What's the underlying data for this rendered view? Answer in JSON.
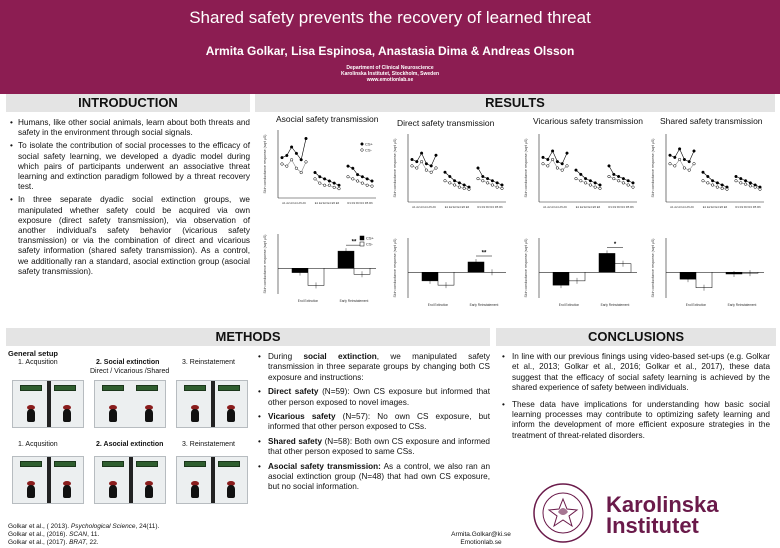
{
  "header": {
    "title": "Shared safety prevents the recovery of learned threat",
    "authors": "Armita Golkar, Lisa Espinosa, Anastasia Dima & Andreas Olsson",
    "affiliation": [
      "Department of Clinical Neuroscience",
      "Karolinska Institutet, Stockholm, Sweden",
      "www.emotionlab.se"
    ]
  },
  "introduction": {
    "heading": "INTRODUCTION",
    "bullets": [
      "Humans, like other social animals, learn about both threats and safety in the environment through social signals.",
      "To isolate the contribution of social processes to the efficacy of social safety learning, we developed a dyadic model during which pairs of participants underwent an associative threat learning and extinction paradigm followed by a threat recovery test.",
      "In three separate dyadic social extinction groups, we manipulated whether safety could be acquired via own exposure (direct safety transmission), via observation of another individual's safety behavior (vicarious safety transmission) or via the combination of direct and vicarious safety information (shared safety transmission). As a control, we additionally ran a standard, asocial extinction group (asocial safety transmission)."
    ]
  },
  "results": {
    "heading": "RESULTS",
    "panels": [
      {
        "title": "Asocial safety transmission"
      },
      {
        "title": "Direct safety transmission"
      },
      {
        "title": "Vicarious safety transmission"
      },
      {
        "title": "Shared safety transmission"
      }
    ],
    "legend": [
      "CS+",
      "CS-"
    ],
    "line_ylabel": "Skin conductance response (sqrt μS)",
    "bar_ylabel": "Skin conductance response (sqrt μS)",
    "line_xticks": [
      "A1 A2 A3 A4 A5 A6",
      "E1 E2 E3 E4 E5 E6",
      "R1 R2 R3 R4 R5 R6"
    ],
    "bar_categories": [
      "End Extinction",
      "Early Reinstatement"
    ],
    "sig_markers": [
      "**",
      "**",
      "*",
      ""
    ]
  },
  "chart_data": [
    {
      "type": "line",
      "title": "Asocial safety transmission",
      "series": [
        {
          "name": "CS+",
          "values": [
            0.95,
            1.0,
            1.2,
            1.05,
            0.9,
            1.4,
            0.6,
            0.5,
            0.45,
            0.4,
            0.35,
            0.3,
            0.75,
            0.7,
            0.55,
            0.5,
            0.45,
            0.4
          ]
        },
        {
          "name": "CS-",
          "values": [
            0.8,
            0.75,
            0.9,
            0.7,
            0.6,
            0.85,
            0.45,
            0.35,
            0.3,
            0.3,
            0.25,
            0.22,
            0.5,
            0.45,
            0.4,
            0.35,
            0.3,
            0.28
          ]
        }
      ],
      "ylim": [
        0,
        1.6
      ]
    },
    {
      "type": "bar",
      "title": "Asocial safety transmission",
      "categories": [
        "End Extinction",
        "Early Reinstatement"
      ],
      "series": [
        {
          "name": "CS+",
          "values": [
            -0.05,
            0.2
          ]
        },
        {
          "name": "CS-",
          "values": [
            -0.2,
            -0.07
          ]
        }
      ],
      "ylim": [
        -0.3,
        0.4
      ]
    },
    {
      "type": "line",
      "title": "Direct safety transmission",
      "series": [
        {
          "name": "CS+",
          "values": [
            1.0,
            0.95,
            1.15,
            0.9,
            0.85,
            1.1,
            0.7,
            0.6,
            0.5,
            0.45,
            0.4,
            0.35,
            0.8,
            0.6,
            0.55,
            0.5,
            0.45,
            0.4
          ]
        },
        {
          "name": "CS-",
          "values": [
            0.85,
            0.8,
            0.95,
            0.75,
            0.7,
            0.8,
            0.5,
            0.45,
            0.4,
            0.35,
            0.32,
            0.3,
            0.55,
            0.5,
            0.45,
            0.4,
            0.35,
            0.32
          ]
        }
      ],
      "ylim": [
        0,
        1.6
      ]
    },
    {
      "type": "bar",
      "title": "Direct safety transmission",
      "categories": [
        "End Extinction",
        "Early Reinstatement"
      ],
      "series": [
        {
          "name": "CS+",
          "values": [
            -0.1,
            0.12
          ]
        },
        {
          "name": "CS-",
          "values": [
            -0.15,
            0.0
          ]
        }
      ],
      "ylim": [
        -0.3,
        0.4
      ]
    },
    {
      "type": "line",
      "title": "Vicarious safety transmission",
      "series": [
        {
          "name": "CS+",
          "values": [
            1.05,
            1.0,
            1.2,
            0.95,
            0.9,
            1.15,
            0.75,
            0.65,
            0.55,
            0.5,
            0.45,
            0.4,
            0.85,
            0.65,
            0.6,
            0.55,
            0.5,
            0.45
          ]
        },
        {
          "name": "CS-",
          "values": [
            0.9,
            0.85,
            1.0,
            0.8,
            0.75,
            0.85,
            0.55,
            0.5,
            0.45,
            0.4,
            0.35,
            0.32,
            0.6,
            0.55,
            0.5,
            0.45,
            0.4,
            0.35
          ]
        }
      ],
      "ylim": [
        0,
        1.6
      ]
    },
    {
      "type": "bar",
      "title": "Vicarious safety transmission",
      "categories": [
        "End Extinction",
        "Early Reinstatement"
      ],
      "series": [
        {
          "name": "CS+",
          "values": [
            -0.15,
            0.22
          ]
        },
        {
          "name": "CS-",
          "values": [
            -0.1,
            0.1
          ]
        }
      ],
      "ylim": [
        -0.3,
        0.4
      ]
    },
    {
      "type": "line",
      "title": "Shared safety transmission",
      "series": [
        {
          "name": "CS+",
          "values": [
            1.1,
            1.05,
            1.25,
            1.0,
            0.95,
            1.2,
            0.7,
            0.6,
            0.5,
            0.45,
            0.4,
            0.35,
            0.6,
            0.55,
            0.5,
            0.45,
            0.4,
            0.35
          ]
        },
        {
          "name": "CS-",
          "values": [
            0.9,
            0.85,
            1.0,
            0.8,
            0.75,
            0.9,
            0.5,
            0.45,
            0.4,
            0.35,
            0.32,
            0.3,
            0.5,
            0.45,
            0.42,
            0.38,
            0.35,
            0.3
          ]
        }
      ],
      "ylim": [
        0,
        1.6
      ]
    },
    {
      "type": "bar",
      "title": "Shared safety transmission",
      "categories": [
        "End Extinction",
        "Early Reinstatement"
      ],
      "series": [
        {
          "name": "CS+",
          "values": [
            -0.08,
            -0.02
          ]
        },
        {
          "name": "CS-",
          "values": [
            -0.18,
            -0.01
          ]
        }
      ],
      "ylim": [
        -0.3,
        0.4
      ]
    }
  ],
  "methods": {
    "heading": "METHODS",
    "subheading": "General setup",
    "row1": {
      "phase1": "1. Acqusition",
      "phase2": "2. Social extinction",
      "phase2_sub": "Direct / Vicarious /Shared",
      "phase3": "3. Reinstatement"
    },
    "row2": {
      "phase1": "1. Acqusition",
      "phase2": "2. Asocial extinction",
      "phase3": "3. Reinstatement"
    },
    "bullets": [
      {
        "pre": "During ",
        "bold": "social extinction",
        "post": ", we manipulated safety transmission in three separate groups by changing both CS exposure and instructions:"
      },
      {
        "pre": "",
        "bold": "Direct safety",
        "post": " (N=59): Own CS exposure but informed that other person exposed to novel images."
      },
      {
        "pre": "",
        "bold": "Vicarious safety",
        "post": " (N=57): No own CS exposure, but informed that other person exposed to CSs."
      },
      {
        "pre": "",
        "bold": "Shared safety",
        "post": " (N=58): Both own CS exposure and informed that other person exposed to same CSs."
      },
      {
        "pre": "",
        "bold": "Asocial safety transmission:",
        "post": " As a control, we also ran an asocial extinction group (N=48) that had own CS exposure, but no social information."
      }
    ]
  },
  "conclusions": {
    "heading": "CONCLUSIONS",
    "bullets": [
      "In line with our previous finings using video-based set-ups (e.g. Golkar et al., 2013; Golkar et al., 2016; Golkar et al., 2017), these data suggest that the efficacy of social safety learning is achieved by the shared experience of safety between individuals.",
      "These data have implications for understanding how basic social learning processes may contribute to optimizing safety learning and inform the development of more efficient exposure strategies in the treatment of threat-related disorders."
    ]
  },
  "references": [
    {
      "authors": "Golkar et al., ( 2013). ",
      "journal": "Psychological Science",
      "rest": ", 24(11)."
    },
    {
      "authors": "Golkar et al., (2016). ",
      "journal": "SCAN",
      "rest": ", 11."
    },
    {
      "authors": "Golkar et al., (2017). ",
      "journal": "BRAT",
      "rest": ", 22."
    }
  ],
  "contact": {
    "email": "Armita.Golkar@ki.se",
    "site": "Emotionlab.se"
  },
  "logo": {
    "line1": "Karolinska",
    "line2": "Institutet",
    "seal_text": "KAROLINSKA INSTITUTET · ANNO 1810",
    "color": "#6a1a4a"
  },
  "colors": {
    "header": "#8c1d52",
    "section": "#e4e4e4",
    "cs_plus": "#000000",
    "cs_minus": "#ffffff"
  }
}
